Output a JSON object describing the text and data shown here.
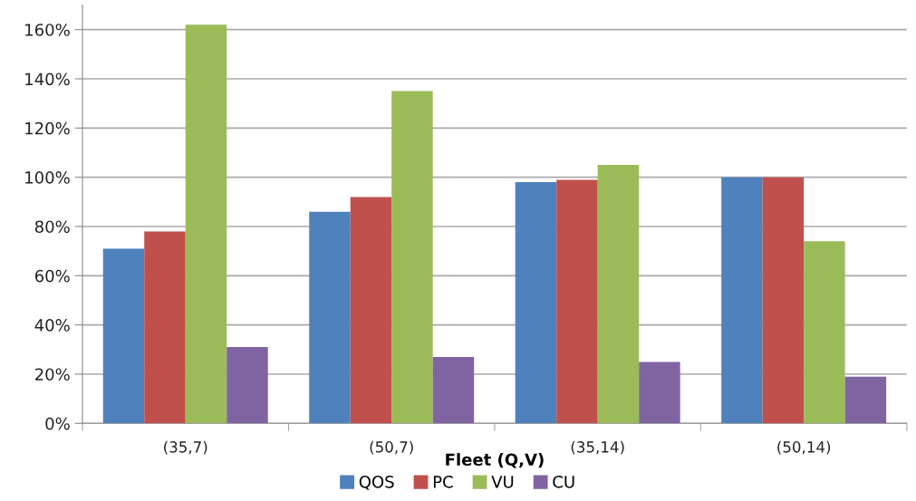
{
  "chart_data": {
    "type": "bar",
    "xlabel": "Fleet (Q,V)",
    "categories": [
      "(35,7)",
      "(50,7)",
      "(35,14)",
      "(50,14)"
    ],
    "series": [
      {
        "name": "QOS",
        "color": "#4f81bd",
        "values": [
          71,
          86,
          98,
          100
        ]
      },
      {
        "name": "PC",
        "color": "#c0504d",
        "values": [
          78,
          92,
          99,
          100
        ]
      },
      {
        "name": "VU",
        "color": "#9bbb59",
        "values": [
          162,
          135,
          105,
          74
        ]
      },
      {
        "name": "CU",
        "color": "#8064a2",
        "values": [
          31,
          27,
          25,
          19
        ]
      }
    ],
    "ylim": [
      0,
      170
    ],
    "yticks": [
      {
        "value": 0,
        "label": "0%"
      },
      {
        "value": 20,
        "label": "20%"
      },
      {
        "value": 40,
        "label": "40%"
      },
      {
        "value": 60,
        "label": "60%"
      },
      {
        "value": 80,
        "label": "80%"
      },
      {
        "value": 100,
        "label": "100%"
      },
      {
        "value": 120,
        "label": "120%"
      },
      {
        "value": 140,
        "label": "140%"
      },
      {
        "value": 160,
        "label": "160%"
      }
    ],
    "grid": "y",
    "legend": "bottom"
  }
}
